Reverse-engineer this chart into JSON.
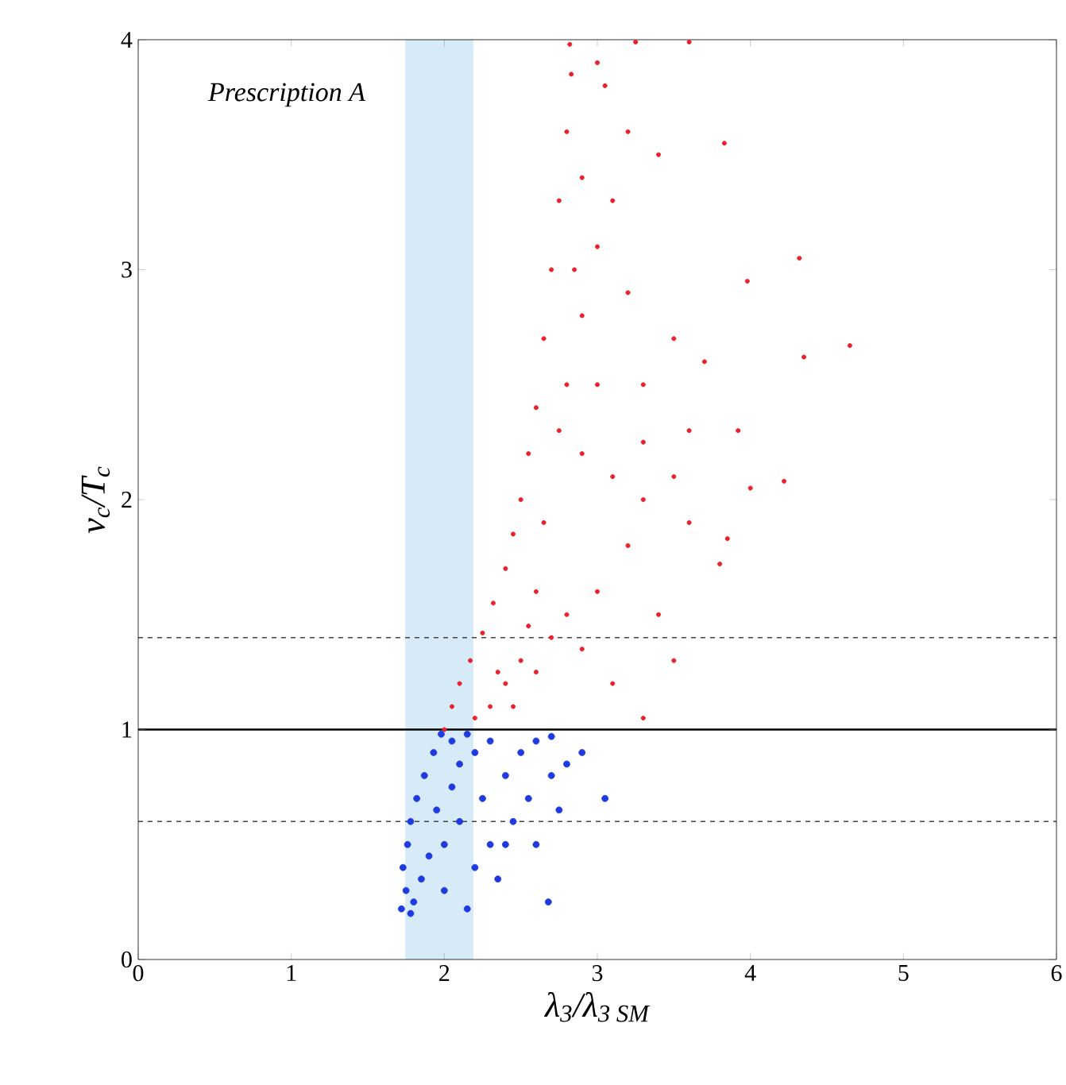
{
  "chart_data": {
    "type": "scatter",
    "xlabel": "λ$_{3}$/λ$_{3 SM}$",
    "ylabel": "v$_{c}$/T$_{c}$",
    "annotations": [
      "Prescription A"
    ],
    "xlim": [
      0,
      6
    ],
    "ylim": [
      0,
      4
    ],
    "xticks": [
      0,
      1,
      2,
      3,
      4,
      5,
      6
    ],
    "yticks": [
      0,
      1,
      2,
      3,
      4
    ],
    "grid": false,
    "ref_lines": [
      {
        "axis": "y",
        "value": 1,
        "line_style": "solid",
        "color": "#000000"
      },
      {
        "axis": "y",
        "value": 0.6,
        "line_style": "dashed",
        "color": "#444444"
      },
      {
        "axis": "y",
        "value": 1.4,
        "line_style": "dashed",
        "color": "#444444"
      }
    ],
    "bands": [
      {
        "axis": "x",
        "from": 1.745,
        "to": 2.19,
        "color": "#d6eaf8"
      }
    ],
    "series": [
      {
        "color": "#e8212a",
        "x": [
          2.0,
          2.05,
          2.1,
          2.17,
          2.25,
          2.32,
          2.4,
          2.45,
          2.5,
          2.55,
          2.6,
          2.65,
          2.7,
          2.75,
          2.8,
          2.83,
          2.82,
          3.25,
          3.0,
          3.6,
          2.2,
          2.3,
          2.4,
          2.5,
          2.6,
          2.7,
          2.8,
          2.9,
          3.0,
          3.1,
          3.2,
          3.3,
          3.4,
          3.5,
          3.6,
          3.3,
          3.1,
          2.9,
          2.8,
          2.9,
          3.0,
          3.1,
          3.2,
          3.3,
          3.5,
          3.6,
          3.4,
          3.2,
          3.05,
          2.9,
          2.85,
          2.75,
          2.65,
          2.6,
          2.55,
          2.35,
          2.45,
          3.7,
          3.5,
          3.0,
          3.3,
          3.83,
          4.65,
          4.35,
          4.32,
          3.98,
          4.22,
          4.0,
          3.85,
          3.8,
          3.92
        ],
        "values": [
          1.0,
          1.1,
          1.2,
          1.3,
          1.42,
          1.55,
          1.7,
          1.85,
          2.0,
          2.2,
          2.4,
          2.7,
          3.0,
          3.3,
          3.6,
          3.85,
          3.98,
          3.99,
          3.9,
          3.99,
          1.05,
          1.1,
          1.2,
          1.3,
          1.25,
          1.4,
          1.5,
          1.35,
          1.6,
          1.2,
          1.8,
          1.05,
          1.5,
          1.3,
          1.9,
          2.0,
          2.1,
          2.2,
          2.5,
          2.8,
          3.1,
          3.3,
          2.9,
          2.5,
          2.7,
          2.3,
          3.5,
          3.6,
          3.8,
          3.4,
          3.0,
          2.3,
          1.9,
          1.6,
          1.45,
          1.25,
          1.1,
          2.6,
          2.1,
          2.5,
          2.25,
          3.55,
          2.67,
          2.62,
          3.05,
          2.95,
          2.08,
          2.05,
          1.83,
          1.72,
          2.3
        ]
      },
      {
        "color": "#1f3be0",
        "x": [
          1.72,
          1.78,
          1.75,
          1.73,
          1.76,
          1.78,
          1.82,
          1.87,
          1.93,
          1.98,
          2.05,
          2.1,
          2.2,
          2.3,
          2.4,
          2.5,
          2.6,
          2.7,
          2.8,
          2.9,
          3.05,
          2.68,
          2.15,
          2.0,
          1.9,
          2.1,
          2.3,
          2.4,
          2.2,
          2.55,
          2.75,
          2.6,
          1.85,
          1.95,
          2.05,
          2.25,
          2.35,
          2.0,
          1.8,
          2.45,
          2.7,
          2.15
        ],
        "values": [
          0.22,
          0.2,
          0.3,
          0.4,
          0.5,
          0.6,
          0.7,
          0.8,
          0.9,
          0.98,
          0.95,
          0.85,
          0.9,
          0.95,
          0.8,
          0.9,
          0.95,
          0.97,
          0.85,
          0.9,
          0.7,
          0.25,
          0.22,
          0.3,
          0.45,
          0.6,
          0.5,
          0.5,
          0.4,
          0.7,
          0.65,
          0.5,
          0.35,
          0.65,
          0.75,
          0.7,
          0.35,
          0.5,
          0.25,
          0.6,
          0.8,
          0.98
        ]
      }
    ]
  }
}
